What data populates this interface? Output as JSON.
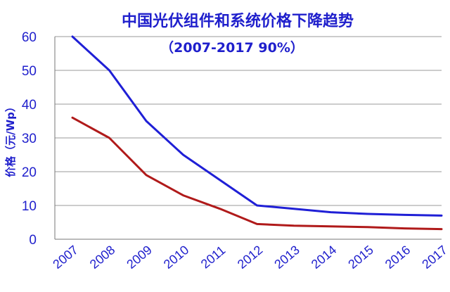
{
  "chart_data": {
    "type": "line",
    "title": "中国光伏组件和系统价格下降趋势",
    "subtitle": "（2007-2017  90%）",
    "ylabel": "价格（元/Wp）",
    "xlabel": "",
    "ylim": [
      0,
      60
    ],
    "yticks": [
      "0",
      "10",
      "20",
      "30",
      "40",
      "50",
      "60"
    ],
    "categories": [
      "2007",
      "2008",
      "2009",
      "2010",
      "2011",
      "2012",
      "2013",
      "2014",
      "2015",
      "2016",
      "2017"
    ],
    "grid": true,
    "legend": "none",
    "series": [
      {
        "color": "#1f1fd6",
        "values": [
          60,
          50,
          35,
          25,
          17.5,
          10,
          9,
          8,
          7.5,
          7.2,
          7
        ]
      },
      {
        "color": "#b01a1a",
        "values": [
          36,
          30,
          19,
          13,
          9,
          4.5,
          4,
          3.8,
          3.6,
          3.2,
          3
        ]
      }
    ]
  }
}
